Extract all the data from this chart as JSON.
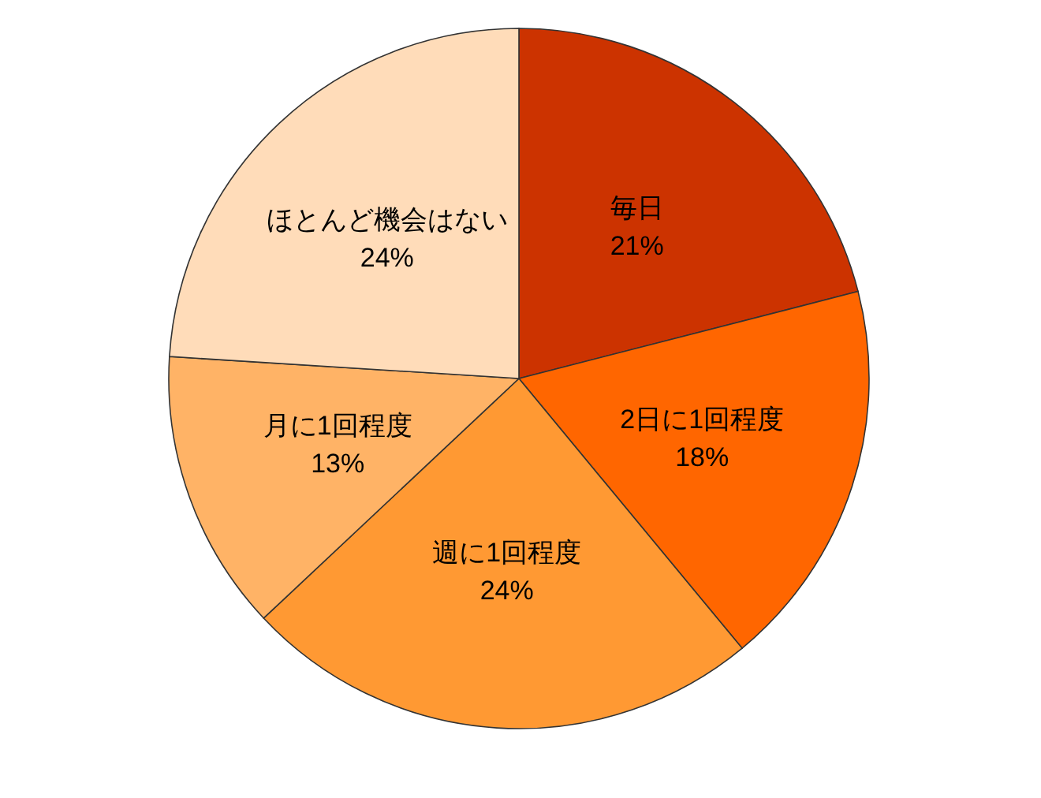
{
  "chart_data": {
    "type": "pie",
    "categories": [
      "毎日",
      "2日に1回程度",
      "週に1回程度",
      "月に1回程度",
      "ほとんど機会はない"
    ],
    "values": [
      21,
      18,
      24,
      13,
      24
    ],
    "colors": [
      "#cc3300",
      "#ff6600",
      "#ff9933",
      "#ffb366",
      "#ffdcb9"
    ],
    "value_labels": [
      "21%",
      "18%",
      "24%",
      "13%",
      "24%"
    ]
  }
}
